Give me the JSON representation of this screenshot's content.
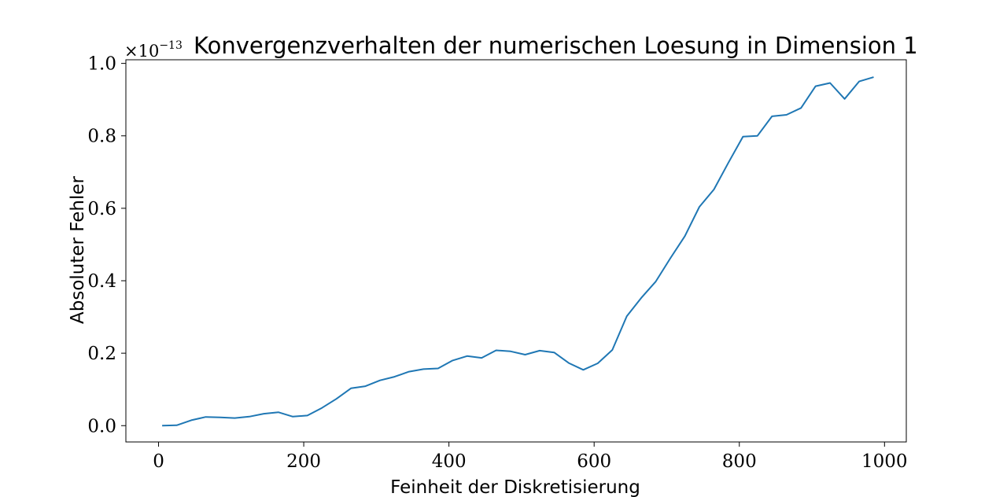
{
  "chart_data": {
    "type": "line",
    "title": "Konvergenzverhalten der numerischen Loesung in Dimension 1",
    "xlabel": "Feinheit der Diskretisierung",
    "ylabel": "Absoluter Fehler",
    "y_offset_base": "×10",
    "y_offset_exponent": "−13",
    "xlim": [
      -45,
      1030
    ],
    "ylim": [
      -0.045,
      1.01
    ],
    "x_ticks": [
      0,
      200,
      400,
      600,
      800,
      1000
    ],
    "x_tick_labels": [
      "0",
      "200",
      "400",
      "600",
      "800",
      "1000"
    ],
    "y_ticks": [
      0.0,
      0.2,
      0.4,
      0.6,
      0.8,
      1.0
    ],
    "y_tick_labels": [
      "0.0",
      "0.2",
      "0.4",
      "0.6",
      "0.8",
      "1.0"
    ],
    "grid": false,
    "line_color": "#1f77b4",
    "series": [
      {
        "x": [
          5,
          25,
          45,
          65,
          85,
          105,
          125,
          145,
          165,
          185,
          205,
          225,
          245,
          265,
          285,
          305,
          325,
          345,
          365,
          385,
          405,
          425,
          445,
          465,
          485,
          505,
          525,
          545,
          565,
          585,
          605,
          625,
          645,
          665,
          685,
          705,
          725,
          745,
          765,
          785,
          805,
          825,
          845,
          865,
          885,
          905,
          925,
          945,
          965,
          985
        ],
        "values": [
          0.0,
          0.001,
          0.015,
          0.024,
          0.023,
          0.021,
          0.025,
          0.033,
          0.037,
          0.025,
          0.028,
          0.049,
          0.074,
          0.103,
          0.109,
          0.125,
          0.135,
          0.149,
          0.156,
          0.158,
          0.18,
          0.192,
          0.187,
          0.208,
          0.205,
          0.196,
          0.207,
          0.202,
          0.173,
          0.154,
          0.172,
          0.209,
          0.302,
          0.353,
          0.398,
          0.462,
          0.523,
          0.604,
          0.652,
          0.726,
          0.798,
          0.8,
          0.854,
          0.858,
          0.877,
          0.937,
          0.946,
          0.902,
          0.95,
          0.962
        ]
      }
    ]
  }
}
